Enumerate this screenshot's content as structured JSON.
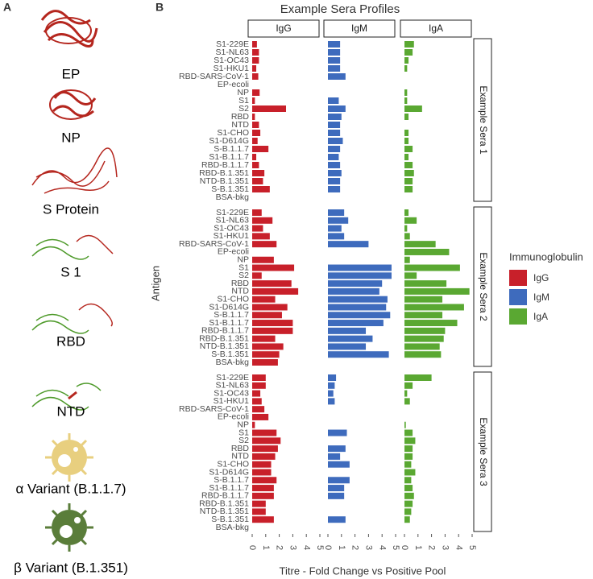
{
  "panel_a": {
    "label": "A",
    "items": [
      "EP",
      "NP",
      "S Protein",
      "S 1",
      "RBD",
      "NTD",
      "α Variant (B.1.1.7)",
      "β Variant (B.1.351)"
    ]
  },
  "chart_data": {
    "type": "bar",
    "panel_label": "B",
    "title": "Example Sera Profiles",
    "orientation": "horizontal",
    "x_label": "Titre - Fold Change vs Positive Pool",
    "y_label": "Antigen",
    "legend_title": "Immunoglobulin",
    "facets": [
      "Example Sera 1",
      "Example Sera 2",
      "Example Sera 3"
    ],
    "categories": [
      "S1-229E",
      "S1-NL63",
      "S1-OC43",
      "S1-HKU1",
      "RBD-SARS-CoV-1",
      "EP-ecoli",
      "NP",
      "S1",
      "S2",
      "RBD",
      "NTD",
      "S1-CHO",
      "S1-D614G",
      "S-B.1.1.7",
      "S1-B.1.1.7",
      "RBD-B.1.1.7",
      "RBD-B.1.351",
      "NTD-B.1.351",
      "S-B.1.351",
      "BSA-bkg"
    ],
    "series": [
      {
        "name": "IgG",
        "color": "#c8202a",
        "values": [
          [
            0.35,
            0.5,
            0.5,
            0.3,
            0.45,
            0,
            0.55,
            0.2,
            2.5,
            0.2,
            0.5,
            0.6,
            0.4,
            1.2,
            0.3,
            0.5,
            0.9,
            0.8,
            1.3,
            0
          ],
          [
            0.7,
            1.5,
            0.8,
            1.3,
            1.8,
            0,
            1.6,
            3.1,
            0.7,
            2.9,
            3.4,
            1.7,
            2.6,
            2.2,
            3.0,
            3.0,
            1.7,
            2.3,
            2.0,
            1.9
          ],
          [
            1.0,
            1.0,
            0.6,
            0.7,
            0.9,
            1.2,
            0.2,
            1.8,
            2.1,
            1.9,
            1.7,
            1.4,
            1.4,
            1.8,
            1.6,
            1.6,
            1.0,
            1.0,
            1.6,
            0
          ]
        ]
      },
      {
        "name": "IgM",
        "color": "#3e6bbd",
        "values": [
          [
            0.9,
            0.9,
            0.9,
            0.9,
            1.3,
            0,
            0,
            0.8,
            1.3,
            1.0,
            0.9,
            0.9,
            1.1,
            0.9,
            0.8,
            0.9,
            1.0,
            0.9,
            0.9,
            0
          ],
          [
            1.2,
            1.5,
            1.0,
            1.2,
            3.0,
            0,
            0,
            4.7,
            4.7,
            4.0,
            3.8,
            4.4,
            4.3,
            4.6,
            4.1,
            2.8,
            3.3,
            2.8,
            4.5,
            0
          ],
          [
            0.6,
            0.5,
            0.4,
            0.5,
            0,
            0,
            0,
            1.4,
            0,
            1.3,
            0.9,
            1.6,
            0,
            1.6,
            1.2,
            1.2,
            0,
            0,
            1.3,
            0
          ]
        ]
      },
      {
        "name": "IgA",
        "color": "#5aa832",
        "values": [
          [
            0.7,
            0.6,
            0.3,
            0.2,
            0,
            0,
            0.2,
            0.2,
            1.3,
            0.3,
            0,
            0.3,
            0.3,
            0.6,
            0.3,
            0.6,
            0.7,
            0.6,
            0.6,
            0
          ],
          [
            0.3,
            0.9,
            0.2,
            0.4,
            2.3,
            3.3,
            0.4,
            4.1,
            0.9,
            3.1,
            4.8,
            2.8,
            4.4,
            2.8,
            3.9,
            3.0,
            2.9,
            2.6,
            2.7,
            0
          ],
          [
            2.0,
            0.6,
            0.2,
            0.4,
            0,
            0,
            0.1,
            0.6,
            0.8,
            0.6,
            0.6,
            0.5,
            0.8,
            0.5,
            0.6,
            0.7,
            0.6,
            0.5,
            0.4,
            0
          ]
        ]
      }
    ],
    "xlim": [
      0,
      5
    ],
    "xticks": [
      0,
      1,
      2,
      3,
      4,
      5
    ],
    "grid": false,
    "legend_position": "right"
  }
}
